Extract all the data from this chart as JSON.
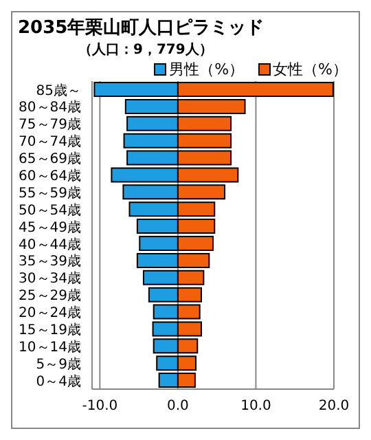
{
  "chart_data": {
    "type": "bar",
    "orientation": "horizontal",
    "stacked": true,
    "title": "2035年栗山町人口ピラミッド",
    "subtitle": "（人口：9，779人）",
    "categories": [
      "85歳～",
      "80～84歳",
      "75～79歳",
      "70～74歳",
      "65～69歳",
      "60～64歳",
      "55～59歳",
      "50～54歳",
      "45～49歳",
      "40～44歳",
      "35～39歳",
      "30～34歳",
      "25～29歳",
      "20～24歳",
      "15～19歳",
      "10～14歳",
      "5～9歳",
      "0～4歳"
    ],
    "series": [
      {
        "name": "男性（%）",
        "color": "#1e9ee0",
        "values": [
          -10.7,
          -6.7,
          -6.5,
          -6.9,
          -6.5,
          -8.5,
          -7.0,
          -6.2,
          -5.2,
          -4.9,
          -5.2,
          -4.4,
          -3.7,
          -3.1,
          -3.2,
          -3.1,
          -2.7,
          -2.4
        ]
      },
      {
        "name": "女性（%）",
        "color": "#f2600c",
        "values": [
          19.9,
          8.6,
          6.8,
          6.8,
          6.8,
          7.7,
          6.0,
          4.7,
          4.7,
          4.5,
          4.0,
          3.3,
          3.0,
          2.8,
          3.0,
          2.5,
          2.3,
          2.2
        ]
      }
    ],
    "xlim": [
      -11,
      20
    ],
    "xticks": [
      {
        "value": -10,
        "label": "-10.0"
      },
      {
        "value": 0,
        "label": "0.0"
      },
      {
        "value": 10,
        "label": "10.0"
      },
      {
        "value": 20,
        "label": "20.0"
      }
    ],
    "grid": "x",
    "legend": "top right"
  }
}
